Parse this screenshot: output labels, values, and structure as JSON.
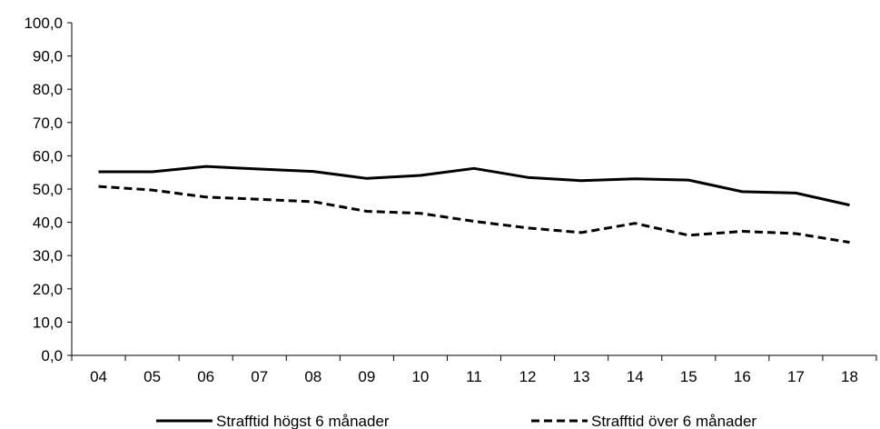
{
  "chart_data": {
    "type": "line",
    "title": "",
    "xlabel": "",
    "ylabel": "",
    "categories": [
      "04",
      "05",
      "06",
      "07",
      "08",
      "09",
      "10",
      "11",
      "12",
      "13",
      "14",
      "15",
      "16",
      "17",
      "18"
    ],
    "ylim": [
      0,
      100
    ],
    "yticks": [
      "0,0",
      "10,0",
      "20,0",
      "30,0",
      "40,0",
      "50,0",
      "60,0",
      "70,0",
      "80,0",
      "90,0",
      "100,0"
    ],
    "grid": false,
    "legend_position": "bottom",
    "series": [
      {
        "name": "Strafftid högst 6 månader",
        "style": "solid",
        "color": "#000000",
        "values": [
          55.2,
          55.2,
          56.8,
          56.0,
          55.3,
          53.2,
          54.1,
          56.2,
          53.5,
          52.5,
          53.1,
          52.7,
          49.2,
          48.8,
          45.2
        ]
      },
      {
        "name": "Strafftid över 6 månader",
        "style": "dashed",
        "color": "#000000",
        "values": [
          50.8,
          49.7,
          47.6,
          46.9,
          46.2,
          43.3,
          42.7,
          40.3,
          38.3,
          36.9,
          39.7,
          36.1,
          37.3,
          36.6,
          34.0
        ]
      }
    ]
  }
}
